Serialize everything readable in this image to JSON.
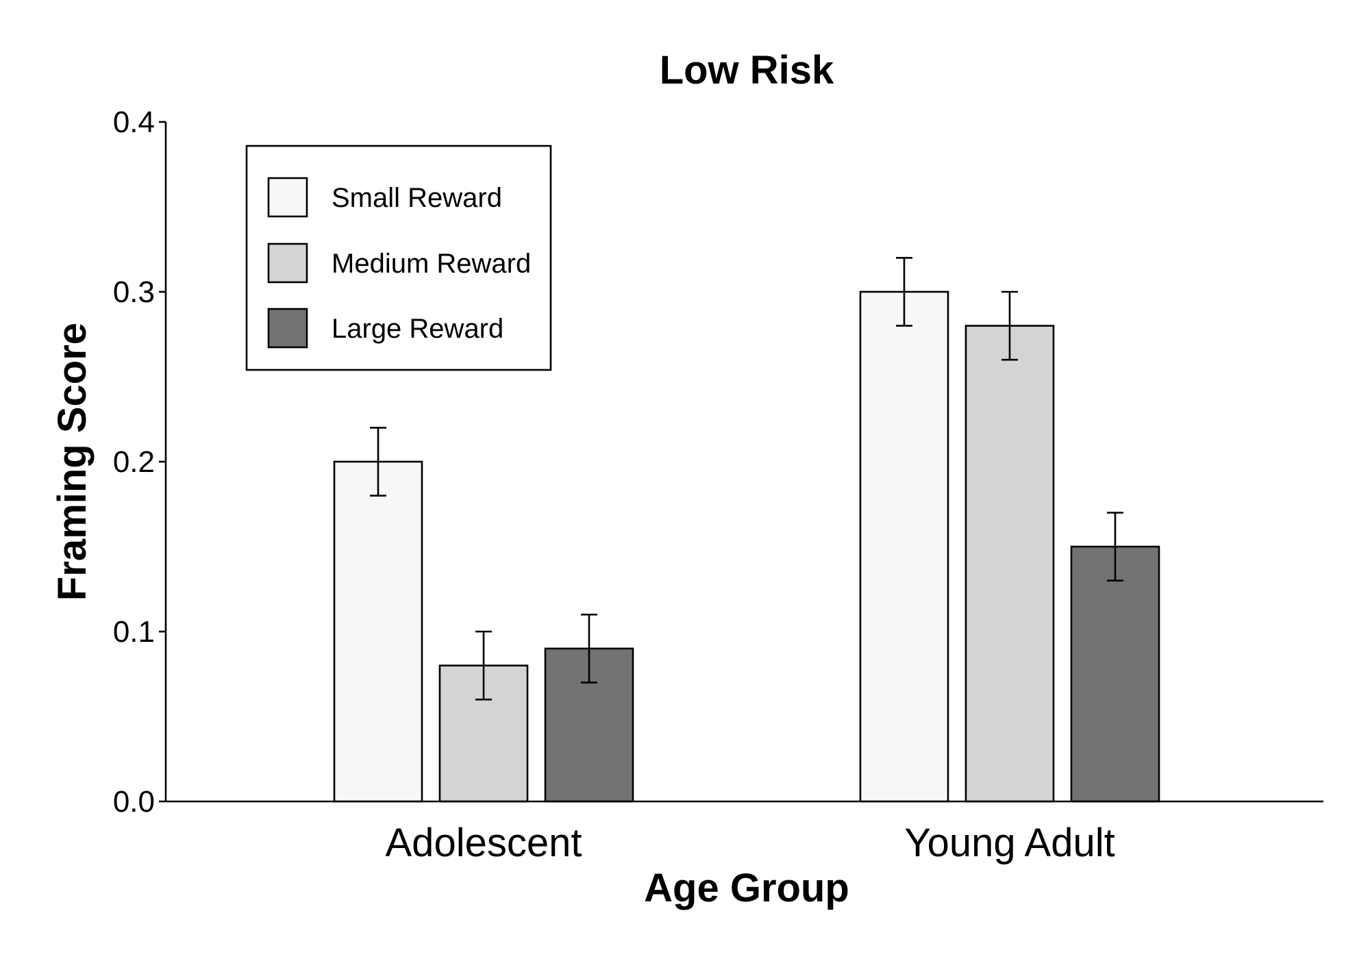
{
  "chart_data": {
    "type": "bar",
    "title": "Low Risk",
    "xlabel": "Age Group",
    "ylabel": "Framing Score",
    "categories": [
      "Adolescent",
      "Young Adult"
    ],
    "ylim": [
      0,
      0.4
    ],
    "yticks": [
      "0.0",
      "0.1",
      "0.2",
      "0.3",
      "0.4"
    ],
    "ytick_values": [
      0,
      0.1,
      0.2,
      0.3,
      0.4
    ],
    "grid": false,
    "legend_position": "top-left",
    "series": [
      {
        "name": "Small Reward",
        "color": "#f7f7f7",
        "values": [
          0.2,
          0.3
        ],
        "errors": [
          0.02,
          0.02
        ]
      },
      {
        "name": "Medium Reward",
        "color": "#d4d4d4",
        "values": [
          0.08,
          0.28
        ],
        "errors": [
          0.02,
          0.02
        ]
      },
      {
        "name": "Large Reward",
        "color": "#737373",
        "values": [
          0.09,
          0.15
        ],
        "errors": [
          0.02,
          0.02
        ]
      }
    ]
  }
}
